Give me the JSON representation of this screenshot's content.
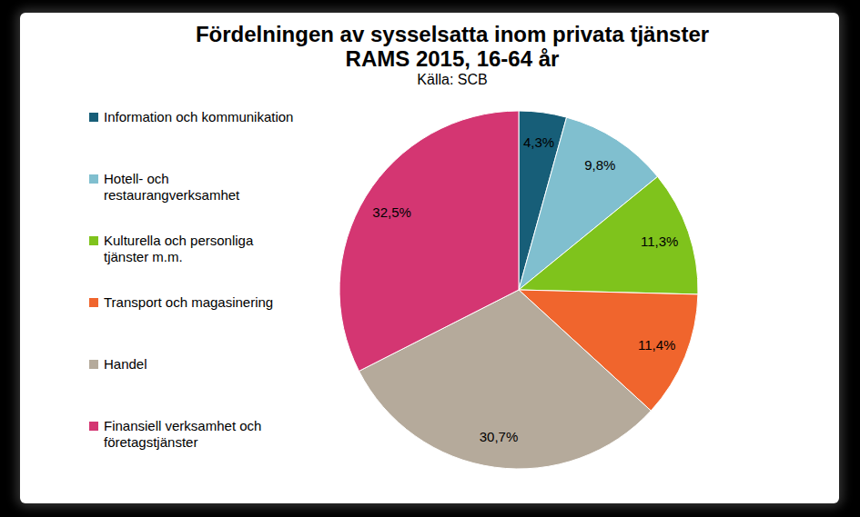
{
  "chart_data": {
    "type": "pie",
    "title": "Fördelningen av sysselsatta inom privata tjänster",
    "subtitle": "RAMS 2015, 16-64 år",
    "source": "Källa: SCB",
    "categories": [
      "Information och kommunikation",
      "Hotell- och restaurangverksamhet",
      "Kulturella och personliga tjänster m.m.",
      "Transport och magasinering",
      "Handel",
      "Finansiell verksamhet och företagstjänster"
    ],
    "values": [
      4.3,
      9.8,
      11.3,
      11.4,
      30.7,
      32.5
    ],
    "value_labels": [
      "4,3%",
      "9,8%",
      "11,3%",
      "11,4%",
      "30,7%",
      "32,5%"
    ],
    "colors": [
      "#175e78",
      "#80bfcf",
      "#7fc31c",
      "#f0652d",
      "#b5aa9b",
      "#d43672"
    ],
    "data_labels": true,
    "legend": "left"
  }
}
